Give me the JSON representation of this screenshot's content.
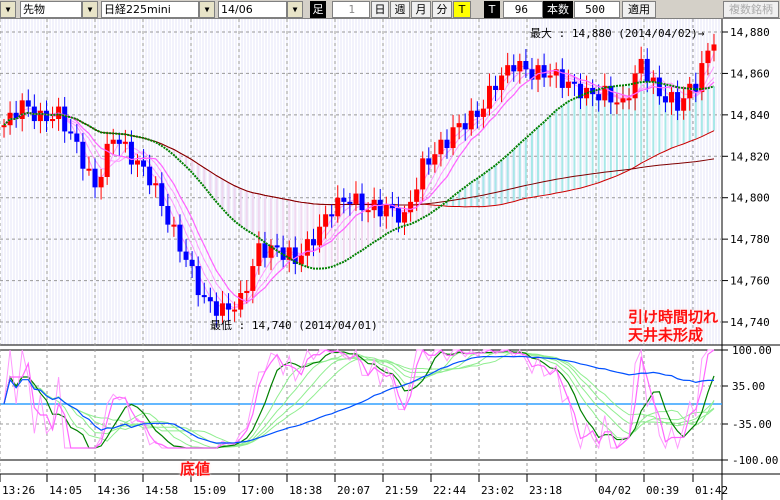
{
  "toolbar": {
    "type_select": "先物",
    "symbol_select": "日経225mini",
    "contract_select": "14/06",
    "ashi_label": "足",
    "period_value": "1",
    "day_btn": "日",
    "week_btn": "週",
    "month_btn": "月",
    "minute_btn": "分",
    "tick_btn": "T",
    "t_label": "T",
    "t_value": "96",
    "bars_label": "本数",
    "bars_value": "500",
    "apply_btn": "適用",
    "multi_btn": "複数銘柄"
  },
  "chart": {
    "max_label": "最大 : 14,880 (2014/04/02)→",
    "min_label": "最低 : 14,740 (2014/04/01)",
    "price_ticks": [
      "14,880",
      "14,860",
      "14,840",
      "14,820",
      "14,800",
      "14,780",
      "14,760",
      "14,740"
    ],
    "osc_ticks": [
      "100.00",
      "35.00",
      "-35.00",
      "-100.00"
    ],
    "time_labels": [
      "13:26",
      "14:05",
      "14:36",
      "14:58",
      "15:09",
      "17:00",
      "18:38",
      "20:07",
      "21:59",
      "22:44",
      "23:02",
      "23:18",
      "04/02",
      "00:39",
      "01:42"
    ],
    "annotations": {
      "bottom": "底値",
      "line1": "引け時間切れ",
      "line2": "天井未形成"
    },
    "colors": {
      "up": "#ff0000",
      "down": "#0000ff",
      "ma_short": "#ff66ff",
      "ma_mid": "#008000",
      "ma_long": "#cc0000",
      "osc_blue": "#0050ff",
      "zero_line": "#30a0ff"
    },
    "price_path": [
      14835,
      14845,
      14838,
      14840,
      14825,
      14805,
      14830,
      14820,
      14810,
      14790,
      14770,
      14750,
      14745,
      14750,
      14775,
      14775,
      14770,
      14780,
      14795,
      14800,
      14795,
      14795,
      14790,
      14815,
      14825,
      14835,
      14840,
      14855,
      14865,
      14860,
      14860,
      14855,
      14850,
      14850,
      14845,
      14865,
      14850,
      14845,
      14855,
      14878
    ]
  }
}
